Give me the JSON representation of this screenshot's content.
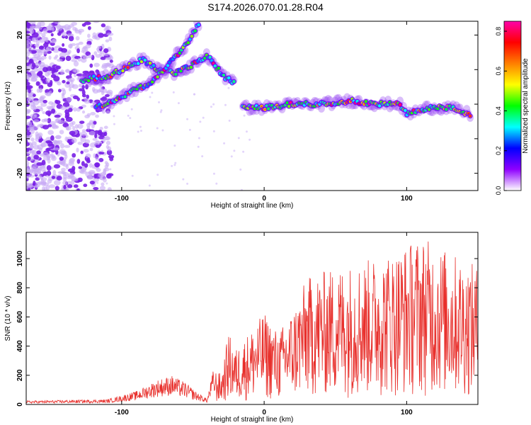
{
  "title": "S174.2026.070.01.28.R04",
  "chart_data": [
    {
      "type": "heatmap",
      "xlabel": "Height of straight line (km)",
      "ylabel": "Frequency (Hz)",
      "xlim": [
        -167,
        150
      ],
      "ylim": [
        -25,
        24
      ],
      "xticks": [
        -100,
        0,
        100
      ],
      "yticks": [
        -20,
        -10,
        0,
        10,
        20
      ],
      "colorbar": {
        "label": "Normalized spectral amplitude",
        "range": [
          0,
          0.85
        ],
        "ticks": [
          0.0,
          0.2,
          0.4,
          0.6,
          0.8
        ],
        "colors": [
          "#ffffff",
          "#8f00ff",
          "#0000ff",
          "#00ffff",
          "#00ff00",
          "#ffff00",
          "#ff7f00",
          "#ff0000",
          "#ff00aa"
        ]
      },
      "ridges": [
        {
          "name": "upper track",
          "x": [
            -128,
            -110,
            -95,
            -85,
            -75,
            -62,
            -52,
            -40,
            -34,
            -28,
            -20
          ],
          "y": [
            7,
            8,
            11,
            13,
            10,
            9,
            11,
            14,
            11,
            8,
            6
          ]
        },
        {
          "name": "lower track",
          "x": [
            -118,
            -105,
            -92,
            -80,
            -70,
            -62,
            -55,
            -48,
            -45
          ],
          "y": [
            -1,
            1,
            4,
            6,
            10,
            14,
            17,
            22,
            24
          ]
        },
        {
          "name": "main track",
          "x": [
            -15,
            0,
            20,
            40,
            60,
            80,
            95,
            100,
            115,
            130,
            145
          ],
          "y": [
            -1,
            -1,
            0,
            0,
            1,
            0,
            0,
            -3,
            -1,
            -1,
            -3
          ]
        }
      ]
    },
    {
      "type": "line",
      "xlabel": "Height of straight line (km)",
      "ylabel": "SNR (10 * v/v)",
      "xlim": [
        -167,
        150
      ],
      "ylim": [
        0,
        1180
      ],
      "xticks": [
        -100,
        0,
        100
      ],
      "yticks": [
        0,
        200,
        400,
        600,
        800,
        1000
      ],
      "color": "#e8302c",
      "envelope": {
        "x": [
          -167,
          -110,
          -90,
          -75,
          -65,
          -55,
          -48,
          -40,
          -36,
          -30,
          -25,
          -20,
          -10,
          0,
          10,
          20,
          30,
          50,
          70,
          90,
          110,
          130,
          150
        ],
        "y": [
          25,
          35,
          90,
          170,
          200,
          150,
          90,
          40,
          230,
          200,
          470,
          360,
          480,
          600,
          470,
          620,
          830,
          900,
          940,
          1000,
          1100,
          1000,
          900
        ]
      }
    }
  ]
}
